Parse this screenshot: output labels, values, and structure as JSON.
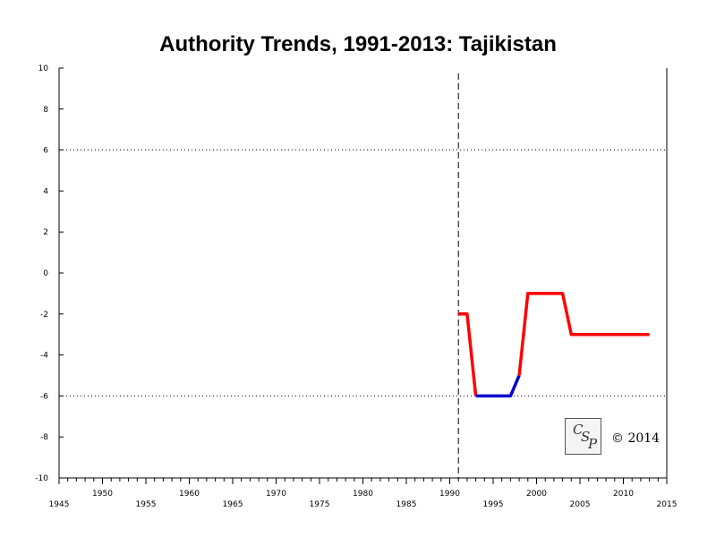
{
  "chart_data": {
    "type": "line",
    "title": "Authority Trends, 1991-2013: Tajikistan",
    "xlabel": "",
    "ylabel": "",
    "xlim": [
      1945,
      2015
    ],
    "ylim": [
      -10,
      10
    ],
    "x_ticks_lower": [
      "1945",
      "1955",
      "1965",
      "1975",
      "1985",
      "1995",
      "2005",
      "2015"
    ],
    "x_ticks_upper": [
      "1950",
      "1960",
      "1970",
      "1980",
      "1990",
      "2000",
      "2010"
    ],
    "y_ticks": [
      "10",
      "8",
      "6",
      "4",
      "2",
      "0",
      "-2",
      "-4",
      "-6",
      "-8",
      "-10"
    ],
    "reference_lines": [
      6,
      -6
    ],
    "marker_year": 1991,
    "series": [
      {
        "color": "#ff0000",
        "points": [
          [
            1991,
            -2
          ],
          [
            1992,
            -2
          ],
          [
            1993,
            -6
          ]
        ]
      },
      {
        "color": "#0000cc",
        "points": [
          [
            1993,
            -6
          ],
          [
            1997,
            -6
          ],
          [
            1998,
            -5
          ]
        ]
      },
      {
        "color": "#ff0000",
        "points": [
          [
            1998,
            -5
          ],
          [
            1999,
            -1
          ],
          [
            2003,
            -1
          ],
          [
            2004,
            -3
          ],
          [
            2013,
            -3
          ]
        ]
      }
    ]
  },
  "watermark": {
    "logo_text": "CSP",
    "copyright": "© 2014"
  },
  "colors": {
    "axis": "#000000",
    "red_series": "#ff0000",
    "blue_series": "#0000cc"
  }
}
